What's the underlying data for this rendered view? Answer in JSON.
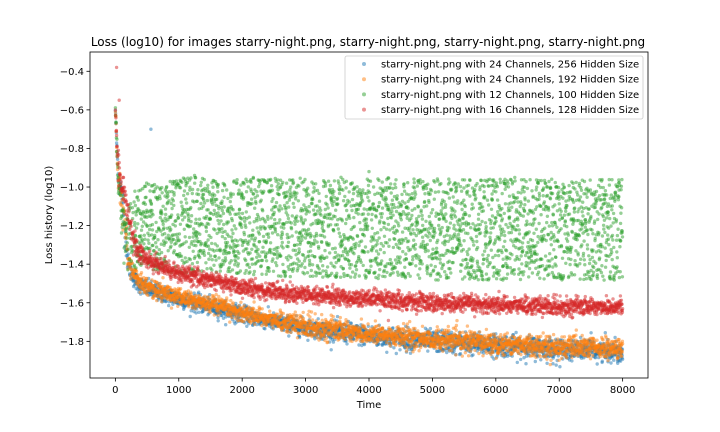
{
  "chart_data": {
    "type": "scatter",
    "title": "Loss (log10) for images starry-night.png, starry-night.png, starry-night.png, starry-night.png",
    "xlabel": "Time",
    "ylabel": "Loss history (log10)",
    "xlim": [
      -400,
      8400
    ],
    "ylim": [
      -1.99,
      -0.3
    ],
    "xticks": [
      0,
      1000,
      2000,
      3000,
      4000,
      5000,
      6000,
      7000,
      8000
    ],
    "xtick_labels": [
      "0",
      "1000",
      "2000",
      "3000",
      "4000",
      "5000",
      "6000",
      "7000",
      "8000"
    ],
    "yticks": [
      -1.8,
      -1.6,
      -1.4,
      -1.2,
      -1.0,
      -0.8,
      -0.6,
      -0.4
    ],
    "ytick_labels": [
      "−1.8",
      "−1.6",
      "−1.4",
      "−1.2",
      "−1.0",
      "−0.8",
      "−0.6",
      "−0.4"
    ],
    "grid": false,
    "legend_position": "top-right",
    "marker_alpha": 0.5,
    "series": [
      {
        "name": "starry-night.png with 24 Channels, 256 Hidden Size",
        "color": "#1f77b4",
        "x": [
          0,
          25,
          50,
          100,
          150,
          200,
          300,
          400,
          600,
          800,
          1000,
          1500,
          2000,
          2500,
          3000,
          4000,
          5000,
          6000,
          7000,
          8000
        ],
        "y_mean": [
          -0.6,
          -0.8,
          -0.95,
          -1.05,
          -1.2,
          -1.4,
          -1.48,
          -1.51,
          -1.54,
          -1.56,
          -1.58,
          -1.62,
          -1.66,
          -1.7,
          -1.73,
          -1.77,
          -1.8,
          -1.82,
          -1.84,
          -1.85
        ],
        "y_spread": [
          0.02,
          0.06,
          0.06,
          0.08,
          0.08,
          0.05,
          0.04,
          0.04,
          0.04,
          0.04,
          0.04,
          0.04,
          0.04,
          0.04,
          0.04,
          0.05,
          0.05,
          0.05,
          0.05,
          0.05
        ]
      },
      {
        "name": "starry-night.png with 24 Channels, 192 Hidden Size",
        "color": "#ff7f0e",
        "x": [
          0,
          25,
          50,
          100,
          150,
          200,
          300,
          400,
          600,
          800,
          1000,
          1500,
          2000,
          2500,
          3000,
          4000,
          5000,
          6000,
          7000,
          8000
        ],
        "y_mean": [
          -0.6,
          -0.8,
          -0.95,
          -1.05,
          -1.2,
          -1.38,
          -1.46,
          -1.49,
          -1.53,
          -1.55,
          -1.57,
          -1.61,
          -1.65,
          -1.69,
          -1.72,
          -1.76,
          -1.79,
          -1.81,
          -1.83,
          -1.84
        ],
        "y_spread": [
          0.02,
          0.06,
          0.06,
          0.08,
          0.08,
          0.05,
          0.04,
          0.04,
          0.04,
          0.04,
          0.04,
          0.04,
          0.04,
          0.04,
          0.05,
          0.05,
          0.05,
          0.05,
          0.05,
          0.05
        ]
      },
      {
        "name": "starry-night.png with 12 Channels, 100 Hidden Size",
        "color": "#2ca02c",
        "x": [
          0,
          25,
          50,
          100,
          150,
          200,
          300,
          500,
          800,
          1000,
          2000,
          3000,
          4000,
          5000,
          6000,
          7000,
          8000
        ],
        "y_mean": [
          -0.6,
          -0.8,
          -1.0,
          -1.15,
          -1.22,
          -1.24,
          -1.22,
          -1.2,
          -1.2,
          -1.2,
          -1.2,
          -1.21,
          -1.21,
          -1.22,
          -1.22,
          -1.22,
          -1.22
        ],
        "y_spread": [
          0.02,
          0.06,
          0.1,
          0.1,
          0.12,
          0.14,
          0.16,
          0.18,
          0.19,
          0.2,
          0.2,
          0.21,
          0.21,
          0.21,
          0.21,
          0.21,
          0.21
        ],
        "outliers": [
          [
            4000,
            -0.92
          ],
          [
            1250,
            -0.94
          ],
          [
            6300,
            -0.95
          ],
          [
            2700,
            -0.98
          ]
        ]
      },
      {
        "name": "starry-night.png with 16 Channels, 128 Hidden Size",
        "color": "#d62728",
        "x": [
          0,
          25,
          50,
          100,
          150,
          200,
          300,
          500,
          800,
          1000,
          1500,
          2000,
          3000,
          4000,
          5000,
          6000,
          7000,
          8000
        ],
        "y_mean": [
          -0.6,
          -0.8,
          -0.9,
          -1.0,
          -1.05,
          -1.15,
          -1.3,
          -1.38,
          -1.42,
          -1.45,
          -1.48,
          -1.52,
          -1.56,
          -1.58,
          -1.6,
          -1.61,
          -1.62,
          -1.62
        ],
        "y_spread": [
          0.02,
          0.06,
          0.06,
          0.05,
          0.06,
          0.06,
          0.05,
          0.04,
          0.04,
          0.04,
          0.04,
          0.04,
          0.04,
          0.04,
          0.04,
          0.04,
          0.04,
          0.04
        ],
        "outliers": [
          [
            20,
            -0.38
          ],
          [
            60,
            -0.55
          ],
          [
            120,
            -0.95
          ]
        ]
      }
    ],
    "extra_points": [
      {
        "series": 0,
        "x": 560,
        "y": -0.7
      }
    ]
  }
}
